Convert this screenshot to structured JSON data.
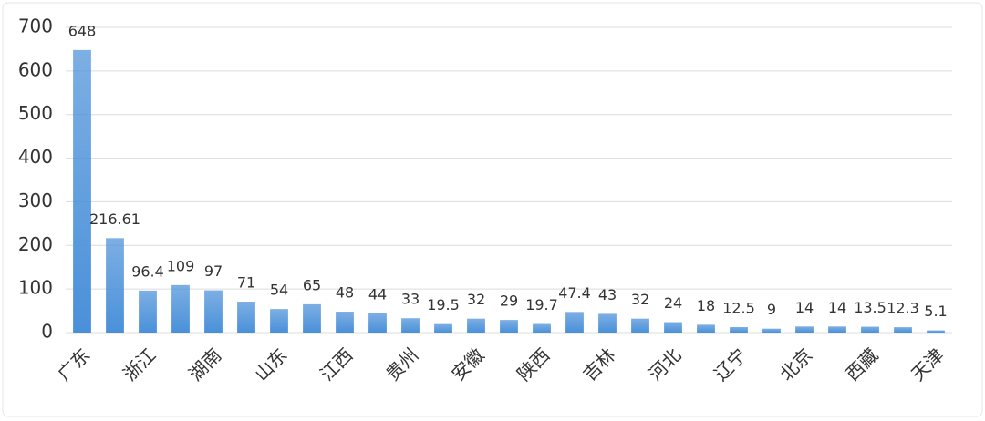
{
  "chart_data": {
    "type": "bar",
    "categories": [
      "广东",
      null,
      "浙江",
      null,
      "湖南",
      null,
      "山东",
      null,
      "江西",
      null,
      "贵州",
      null,
      "安徽",
      null,
      "陕西",
      null,
      "吉林",
      null,
      "河北",
      null,
      "辽宁",
      null,
      "北京",
      null,
      "西藏",
      null,
      "天津"
    ],
    "values": [
      648,
      216.61,
      96.4,
      109,
      97,
      71,
      54,
      65,
      48,
      44,
      33,
      19.5,
      32,
      29,
      19.7,
      47.4,
      43,
      32,
      24,
      18,
      12.5,
      9,
      14,
      14,
      13.5,
      12.3,
      5.1
    ],
    "color": "#4a90d9",
    "ylim": [
      0,
      700
    ],
    "yticks": [
      0,
      100,
      200,
      300,
      400,
      500,
      600,
      700
    ],
    "grid": true
  }
}
